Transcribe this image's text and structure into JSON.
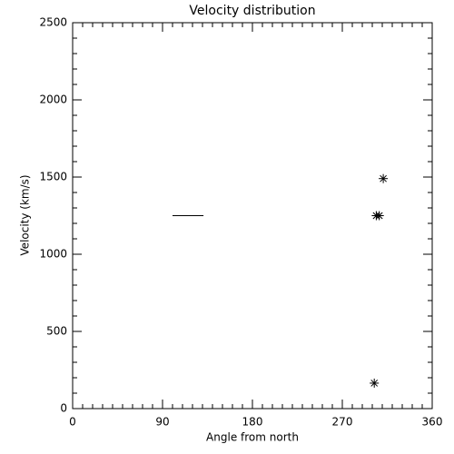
{
  "chart_data": {
    "type": "scatter",
    "title": "Velocity distribution",
    "x_label": "Angle from north",
    "y_label": "Velocity (km/s)",
    "xlim": [
      0,
      360
    ],
    "xticks": [
      0,
      90,
      180,
      270,
      360
    ],
    "ylim": [
      0,
      2500
    ],
    "yticks": [
      0,
      500,
      1000,
      1500,
      2000,
      2500
    ],
    "color": "#000000",
    "points": {
      "x": [
        311,
        304,
        307,
        302
      ],
      "y": [
        1490,
        1250,
        1250,
        165
      ]
    },
    "segment": {
      "x": [
        100,
        131
      ],
      "y": [
        1250,
        1250
      ]
    }
  }
}
